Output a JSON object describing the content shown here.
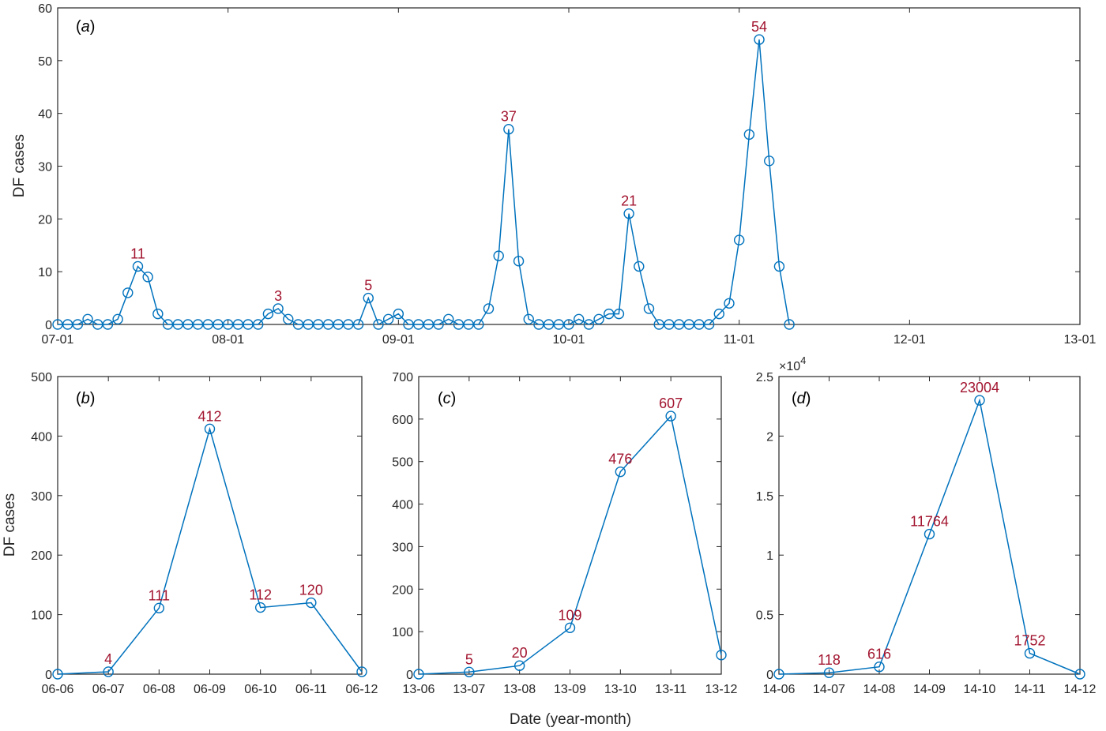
{
  "chart_data": [
    {
      "panel": "(a)",
      "type": "line",
      "ylabel": "DF cases",
      "xlabel": "",
      "ylim": [
        0,
        60
      ],
      "yticks": [
        "0",
        "10",
        "20",
        "30",
        "40",
        "50",
        "60"
      ],
      "xtick_labels": [
        "07-01",
        "08-01",
        "09-01",
        "10-01",
        "11-01",
        "12-01",
        "13-01"
      ],
      "values": [
        0,
        0,
        0,
        1,
        0,
        0,
        1,
        6,
        11,
        9,
        2,
        0,
        0,
        0,
        0,
        0,
        0,
        0,
        0,
        0,
        0,
        2,
        3,
        1,
        0,
        0,
        0,
        0,
        0,
        0,
        0,
        5,
        0,
        1,
        2,
        0,
        0,
        0,
        0,
        1,
        0,
        0,
        0,
        3,
        13,
        37,
        12,
        1,
        0,
        0,
        0,
        0,
        1,
        0,
        1,
        2,
        2,
        21,
        11,
        3,
        0,
        0,
        0,
        0,
        0,
        0,
        2,
        4,
        16,
        36,
        54,
        31,
        11,
        0
      ],
      "annotations": [
        {
          "index": 8,
          "text": "11"
        },
        {
          "index": 22,
          "text": "3"
        },
        {
          "index": 31,
          "text": "5"
        },
        {
          "index": 45,
          "text": "37"
        },
        {
          "index": 57,
          "text": "21"
        },
        {
          "index": 70,
          "text": "54"
        }
      ]
    },
    {
      "panel": "(b)",
      "type": "line",
      "ylabel": "DF cases",
      "ylim": [
        0,
        500
      ],
      "yticks": [
        "0",
        "100",
        "200",
        "300",
        "400",
        "500"
      ],
      "categories": [
        "06-06",
        "06-07",
        "06-08",
        "06-09",
        "06-10",
        "06-11",
        "06-12"
      ],
      "values": [
        0,
        4,
        111,
        412,
        112,
        120,
        4
      ],
      "annotations": [
        {
          "index": 1,
          "text": "4"
        },
        {
          "index": 2,
          "text": "111"
        },
        {
          "index": 3,
          "text": "412"
        },
        {
          "index": 4,
          "text": "112"
        },
        {
          "index": 5,
          "text": "120"
        }
      ]
    },
    {
      "panel": "(c)",
      "type": "line",
      "ylim": [
        0,
        700
      ],
      "yticks": [
        "0",
        "100",
        "200",
        "300",
        "400",
        "500",
        "600",
        "700"
      ],
      "categories": [
        "13-06",
        "13-07",
        "13-08",
        "13-09",
        "13-10",
        "13-11",
        "13-12"
      ],
      "values": [
        0,
        5,
        20,
        109,
        476,
        607,
        45
      ],
      "annotations": [
        {
          "index": 1,
          "text": "5"
        },
        {
          "index": 2,
          "text": "20"
        },
        {
          "index": 3,
          "text": "109"
        },
        {
          "index": 4,
          "text": "476"
        },
        {
          "index": 5,
          "text": "607"
        }
      ]
    },
    {
      "panel": "(d)",
      "type": "line",
      "ylim": [
        0,
        25000
      ],
      "yticks": [
        "0",
        "0.5",
        "1",
        "1.5",
        "2",
        "2.5"
      ],
      "yscale_label": "×10",
      "yscale_exp": "4",
      "categories": [
        "14-06",
        "14-07",
        "14-08",
        "14-09",
        "14-10",
        "14-11",
        "14-12"
      ],
      "values": [
        0,
        118,
        616,
        11764,
        23004,
        1752,
        0
      ],
      "annotations": [
        {
          "index": 1,
          "text": "118"
        },
        {
          "index": 2,
          "text": "616"
        },
        {
          "index": 3,
          "text": "11764"
        },
        {
          "index": 4,
          "text": "23004"
        },
        {
          "index": 5,
          "text": "1752"
        }
      ]
    }
  ],
  "shared_xlabel": "Date (year-month)",
  "colors": {
    "series": "#0072bd",
    "labels": "#a2142f",
    "axes": "#262626"
  }
}
